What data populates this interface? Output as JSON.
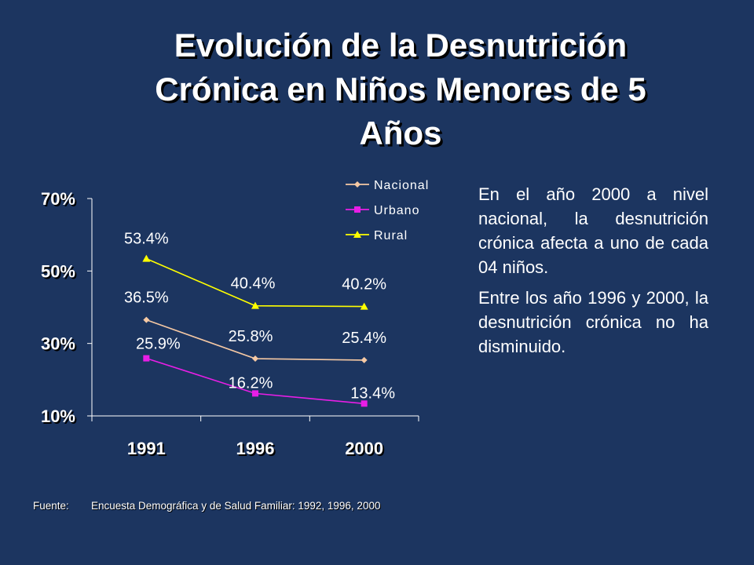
{
  "title": {
    "line1": "Evolución de la Desnutrición",
    "line2": "Crónica en Niños Menores de 5",
    "line3": "Años"
  },
  "chart_data": {
    "type": "line",
    "x": [
      "1991",
      "1996",
      "2000"
    ],
    "ylim": [
      10,
      70
    ],
    "yticks": [
      "70%",
      "50%",
      "30%",
      "10%"
    ],
    "ytick_values": [
      70,
      50,
      30,
      10
    ],
    "series": [
      {
        "name": "Nacional",
        "values": [
          36.5,
          25.8,
          25.4
        ],
        "labels": [
          "36.5%",
          "25.8%",
          "25.4%"
        ],
        "color": "#f6c9a4",
        "marker": "diamond"
      },
      {
        "name": "Urbano",
        "values": [
          25.9,
          16.2,
          13.4
        ],
        "labels": [
          "25.9%",
          "16.2%",
          "13.4%"
        ],
        "color": "#e81ee6",
        "marker": "square"
      },
      {
        "name": "Rural",
        "values": [
          53.4,
          40.4,
          40.2
        ],
        "labels": [
          "53.4%",
          "40.4%",
          "40.2%"
        ],
        "color": "#ffff00",
        "marker": "triangle"
      }
    ],
    "legend_position": "top-right"
  },
  "side_text": {
    "p1": "En el año 2000 a nivel nacional, la desnutrición crónica afecta a uno de cada 04 niños.",
    "p2": "Entre los año 1996 y 2000, la desnutrición crónica no ha disminuido."
  },
  "footer": {
    "label": "Fuente:",
    "text": "Encuesta Demográfica y de Salud Familiar: 1992, 1996, 2000"
  }
}
